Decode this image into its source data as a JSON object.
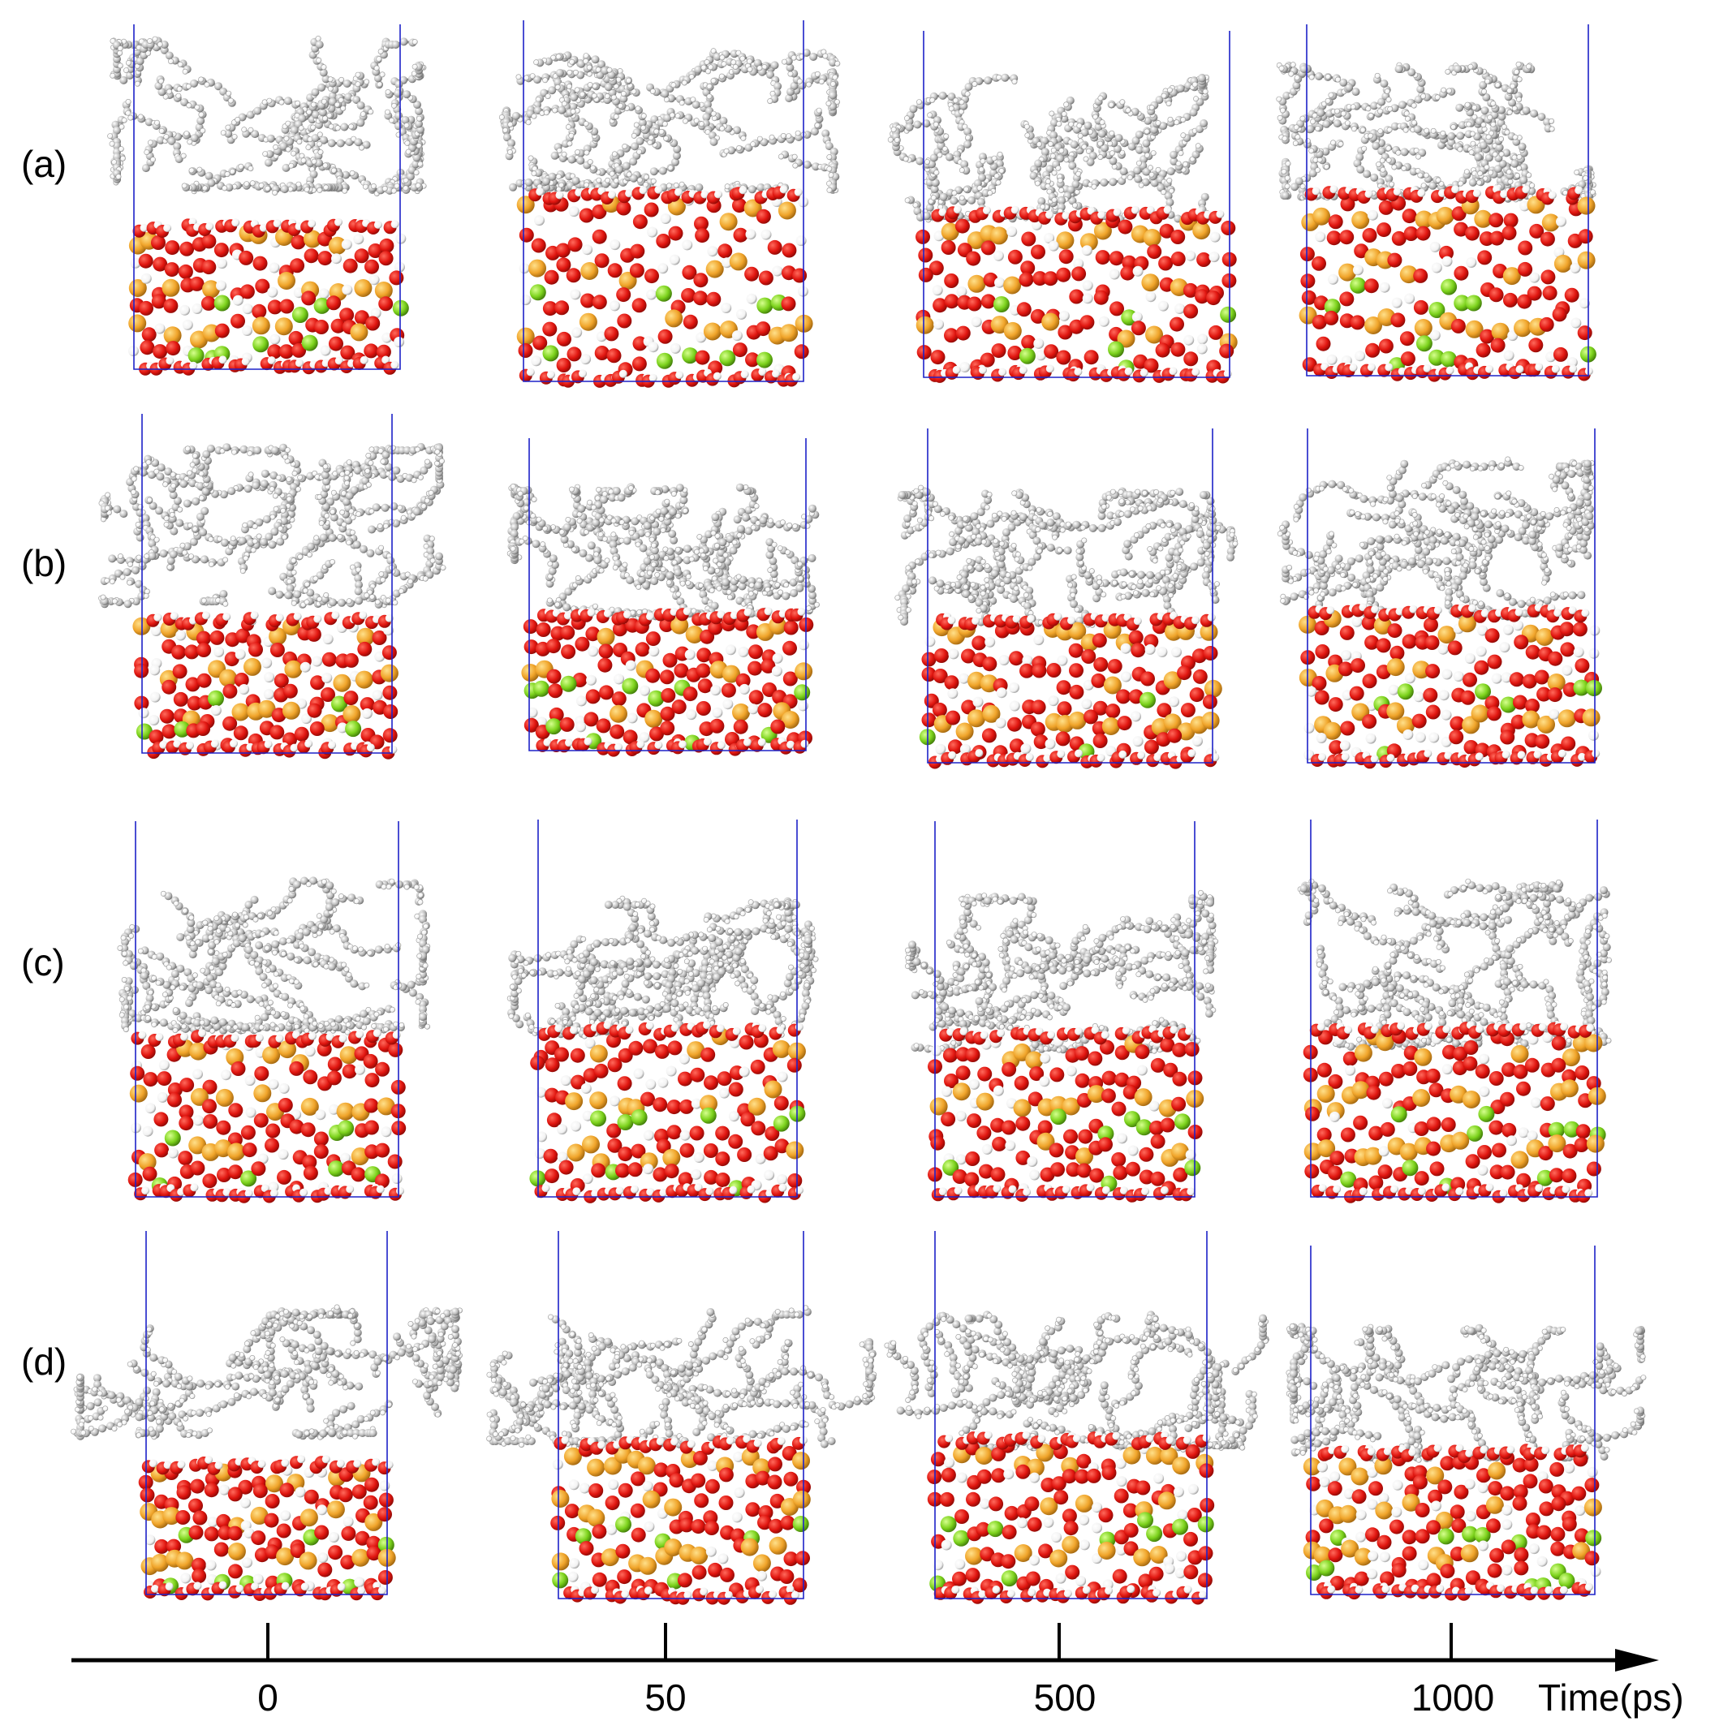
{
  "figure": {
    "row_labels": [
      "(a)",
      "(b)",
      "(c)",
      "(d)"
    ],
    "time_axis": {
      "title": "Time(ps)",
      "tick_labels": [
        "0",
        "50",
        "500",
        "1000"
      ]
    },
    "colors": {
      "box_outline": "#1d22c8",
      "oil_molecules": "#a9a9a9",
      "oxygen_atoms": "#e0150f",
      "hydrogen_atoms": "#ffffff",
      "silicon_atoms": "#f0a42a",
      "calcium_atoms": "#7cd21c",
      "axis": "#000000"
    }
  }
}
